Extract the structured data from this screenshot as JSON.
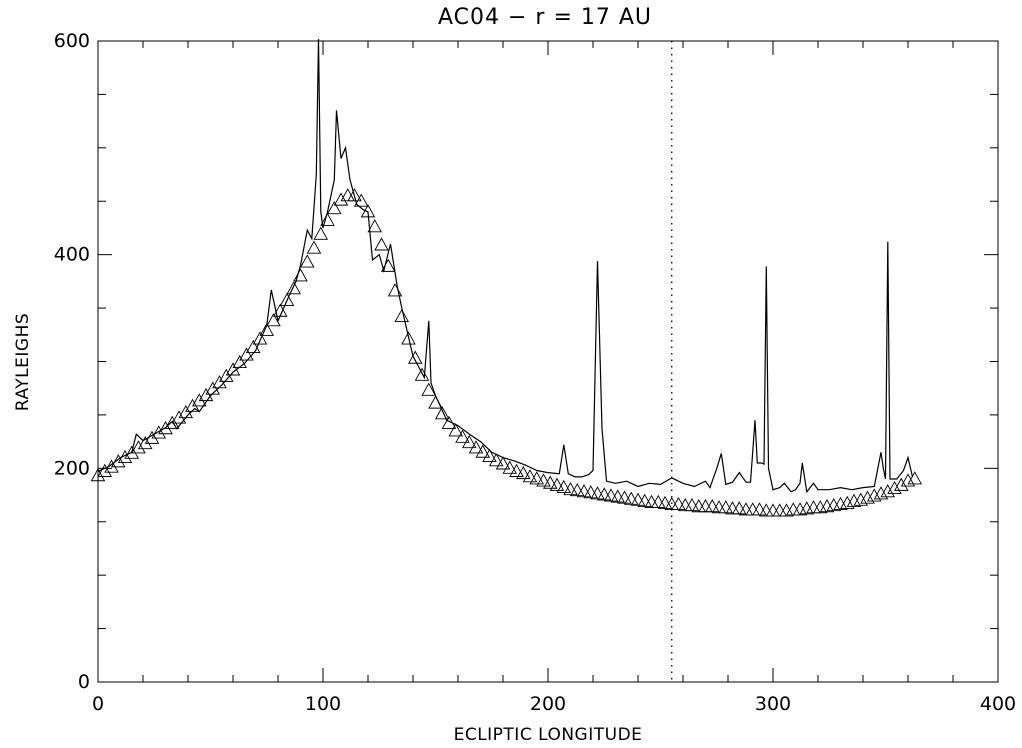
{
  "chart_data": {
    "type": "line",
    "title": "AC04 − r = 17 AU",
    "xlabel": "ECLIPTIC LONGITUDE",
    "ylabel": "RAYLEIGHS",
    "xlim": [
      0,
      400
    ],
    "ylim": [
      0,
      600
    ],
    "x_ticks": [
      "0",
      "100",
      "200",
      "300",
      "400"
    ],
    "y_ticks": [
      "0",
      "200",
      "400",
      "600"
    ],
    "grid": false,
    "legend": "none",
    "reference_line": {
      "x": 255,
      "style": "dotted"
    },
    "series": [
      {
        "style": "solid-line",
        "x": [
          0,
          5,
          10,
          15,
          17,
          20,
          25,
          30,
          33,
          35,
          40,
          43,
          45,
          50,
          55,
          60,
          65,
          70,
          75,
          77,
          80,
          85,
          88,
          90,
          93,
          95,
          97,
          98,
          99,
          100,
          102,
          105,
          106,
          108,
          110,
          112,
          115,
          118,
          120,
          122,
          125,
          127,
          130,
          133,
          135,
          140,
          145,
          147,
          148,
          150,
          155,
          160,
          165,
          170,
          175,
          180,
          185,
          190,
          195,
          200,
          205,
          207,
          209,
          212,
          215,
          218,
          220,
          222,
          224,
          226,
          230,
          235,
          240,
          245,
          250,
          255,
          260,
          265,
          270,
          272,
          275,
          277,
          279,
          282,
          285,
          288,
          290,
          292,
          293,
          295,
          296,
          297,
          298,
          300,
          303,
          305,
          308,
          310,
          312,
          313,
          315,
          318,
          320,
          325,
          330,
          335,
          340,
          345,
          348,
          349,
          350,
          351,
          352,
          355,
          358,
          360,
          362
        ],
        "y": [
          197,
          202,
          210,
          215,
          232,
          226,
          232,
          238,
          244,
          237,
          250,
          256,
          253,
          268,
          278,
          290,
          298,
          310,
          334,
          367,
          338,
          362,
          375,
          390,
          423,
          415,
          475,
          610,
          440,
          425,
          440,
          470,
          535,
          490,
          500,
          470,
          447,
          442,
          440,
          395,
          400,
          385,
          410,
          370,
          350,
          305,
          285,
          338,
          280,
          268,
          245,
          240,
          232,
          225,
          215,
          210,
          207,
          203,
          198,
          196,
          195,
          222,
          195,
          192,
          192,
          194,
          198,
          394,
          237,
          188,
          186,
          188,
          183,
          186,
          185,
          191,
          186,
          183,
          188,
          182,
          200,
          214,
          185,
          187,
          196,
          187,
          187,
          245,
          205,
          205,
          204,
          389,
          200,
          180,
          182,
          186,
          178,
          180,
          186,
          205,
          178,
          186,
          180,
          180,
          182,
          180,
          182,
          183,
          215,
          200,
          190,
          412,
          190,
          190,
          198,
          210,
          192
        ]
      },
      {
        "style": "triangle-markers",
        "x": [
          0,
          3,
          6,
          9,
          12,
          15,
          18,
          21,
          24,
          27,
          30,
          33,
          36,
          39,
          42,
          45,
          48,
          51,
          54,
          57,
          60,
          63,
          66,
          69,
          72,
          75,
          78,
          81,
          84,
          87,
          90,
          93,
          96,
          99,
          102,
          105,
          108,
          111,
          114,
          117,
          120,
          123,
          126,
          129,
          132,
          135,
          138,
          141,
          144,
          147,
          150,
          153,
          156,
          159,
          162,
          165,
          168,
          171,
          174,
          177,
          180,
          183,
          186,
          189,
          192,
          195,
          198,
          201,
          204,
          207,
          210,
          213,
          216,
          219,
          222,
          225,
          228,
          231,
          234,
          237,
          240,
          243,
          246,
          249,
          252,
          255,
          258,
          261,
          264,
          267,
          270,
          273,
          276,
          279,
          282,
          285,
          288,
          291,
          294,
          297,
          300,
          303,
          306,
          309,
          312,
          315,
          318,
          321,
          324,
          327,
          330,
          333,
          336,
          339,
          342,
          345,
          348,
          351,
          354,
          357,
          360,
          363
        ],
        "y": [
          193,
          197,
          201,
          206,
          210,
          214,
          219,
          223,
          228,
          233,
          237,
          242,
          247,
          252,
          258,
          263,
          268,
          274,
          280,
          286,
          292,
          299,
          306,
          313,
          321,
          329,
          338,
          347,
          357,
          368,
          380,
          393,
          406,
          419,
          432,
          443,
          451,
          455,
          455,
          450,
          440,
          426,
          409,
          389,
          366,
          342,
          321,
          303,
          287,
          273,
          261,
          251,
          242,
          235,
          229,
          224,
          219,
          215,
          211,
          207,
          204,
          200,
          197,
          195,
          192,
          190,
          188,
          186,
          184,
          182,
          180,
          179,
          178,
          177,
          176,
          175,
          174,
          173,
          172,
          171,
          170,
          169,
          168,
          168,
          167,
          166,
          166,
          165,
          165,
          164,
          164,
          164,
          163,
          163,
          162,
          162,
          161,
          161,
          161,
          160,
          160,
          160,
          160,
          161,
          161,
          162,
          163,
          163,
          164,
          165,
          166,
          167,
          169,
          170,
          172,
          174,
          176,
          178,
          181,
          184,
          188,
          190
        ]
      }
    ]
  }
}
